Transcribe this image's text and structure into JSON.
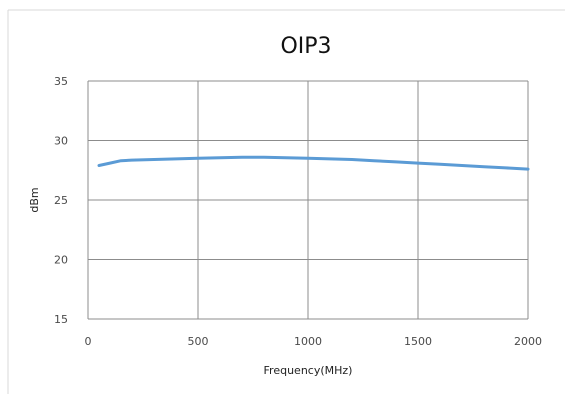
{
  "chart_data": {
    "type": "line",
    "title": "OIP3",
    "xlabel": "Frequency(MHz)",
    "ylabel": "dBm",
    "xlim": [
      0,
      2000
    ],
    "ylim": [
      15,
      35
    ],
    "x_ticks": [
      0,
      500,
      1000,
      1500,
      2000
    ],
    "y_ticks": [
      15,
      20,
      25,
      30,
      35
    ],
    "x_tick_labels": [
      "0",
      "500",
      "1000",
      "1500",
      "2000"
    ],
    "y_tick_labels": [
      "15",
      "20",
      "25",
      "30",
      "35"
    ],
    "grid": true,
    "legend": "none",
    "series": [
      {
        "color": "#5b9bd5",
        "x": [
          50,
          100,
          150,
          200,
          300,
          400,
          500,
          600,
          700,
          750,
          800,
          900,
          1000,
          1100,
          1200,
          1300,
          1400,
          1500,
          1600,
          1700,
          1800,
          1900,
          2000
        ],
        "y": [
          27.9,
          28.1,
          28.3,
          28.35,
          28.4,
          28.45,
          28.5,
          28.55,
          28.6,
          28.6,
          28.6,
          28.55,
          28.5,
          28.45,
          28.4,
          28.3,
          28.2,
          28.1,
          28.0,
          27.9,
          27.8,
          27.7,
          27.6
        ]
      }
    ]
  },
  "colors": {
    "grid": "#8c8c8c",
    "frame": "#d9d9d9",
    "line": "#5b9bd5"
  }
}
